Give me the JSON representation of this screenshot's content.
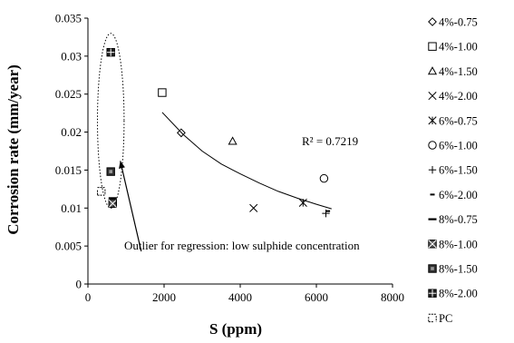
{
  "chart_data": {
    "type": "scatter",
    "title": "",
    "xlabel": "S (ppm)",
    "ylabel": "Corrosion rate (mm/year)",
    "xlim": [
      0,
      8000
    ],
    "ylim": [
      0,
      0.035
    ],
    "x_ticks": [
      "0",
      "2000",
      "4000",
      "6000",
      "8000"
    ],
    "y_ticks": [
      "0",
      "0.005",
      "0.01",
      "0.015",
      "0.02",
      "0.025",
      "0.03",
      "0.035"
    ],
    "grid": false,
    "legend_placement": "right",
    "series": [
      {
        "name": "4%-0.75",
        "marker": "diamond-open",
        "points": [
          [
            2450,
            0.0199
          ]
        ]
      },
      {
        "name": "4%-1.00",
        "marker": "square-open",
        "points": [
          [
            1950,
            0.0252
          ]
        ]
      },
      {
        "name": "4%-1.50",
        "marker": "triangle-open",
        "points": [
          [
            3800,
            0.0188
          ]
        ]
      },
      {
        "name": "4%-2.00",
        "marker": "x",
        "points": [
          [
            4350,
            0.01
          ]
        ]
      },
      {
        "name": "6%-0.75",
        "marker": "asterisk",
        "points": [
          [
            5650,
            0.0107
          ]
        ]
      },
      {
        "name": "6%-1.00",
        "marker": "circle-open",
        "points": [
          [
            6200,
            0.0139
          ]
        ]
      },
      {
        "name": "6%-1.50",
        "marker": "plus",
        "points": [
          [
            6250,
            0.0093
          ]
        ]
      },
      {
        "name": "6%-2.00",
        "marker": "short-dash",
        "points": [
          [
            6300,
            0.0096
          ]
        ]
      },
      {
        "name": "8%-0.75",
        "marker": "long-dash",
        "points": [
          [
            650,
            0.0113
          ]
        ]
      },
      {
        "name": "8%-1.00",
        "marker": "square-x",
        "points": [
          [
            650,
            0.0106
          ]
        ]
      },
      {
        "name": "8%-1.50",
        "marker": "square-hatch",
        "points": [
          [
            600,
            0.0148
          ]
        ]
      },
      {
        "name": "8%-2.00",
        "marker": "square-cross",
        "points": [
          [
            600,
            0.0305
          ]
        ]
      },
      {
        "name": "PC",
        "marker": "pc-open",
        "points": [
          [
            350,
            0.0122
          ]
        ]
      }
    ],
    "trendline": {
      "type": "power",
      "x_range": [
        1950,
        6400
      ],
      "points": [
        [
          1950,
          0.0226
        ],
        [
          2500,
          0.0197
        ],
        [
          3000,
          0.0175
        ],
        [
          3500,
          0.0158
        ],
        [
          4000,
          0.0145
        ],
        [
          4500,
          0.0133
        ],
        [
          5000,
          0.0122
        ],
        [
          5500,
          0.0113
        ],
        [
          6000,
          0.0105
        ],
        [
          6400,
          0.0099
        ]
      ],
      "r2_label": "R² = 0.7219"
    },
    "annotation": {
      "text": "Outlier for regression: low sulphide concentration",
      "ellipse_center": [
        600,
        0.0215
      ],
      "ellipse_radii": [
        350,
        0.0115
      ],
      "arrow_tip": [
        850,
        0.0162
      ],
      "arrow_tail": [
        1400,
        0.0043
      ]
    }
  }
}
